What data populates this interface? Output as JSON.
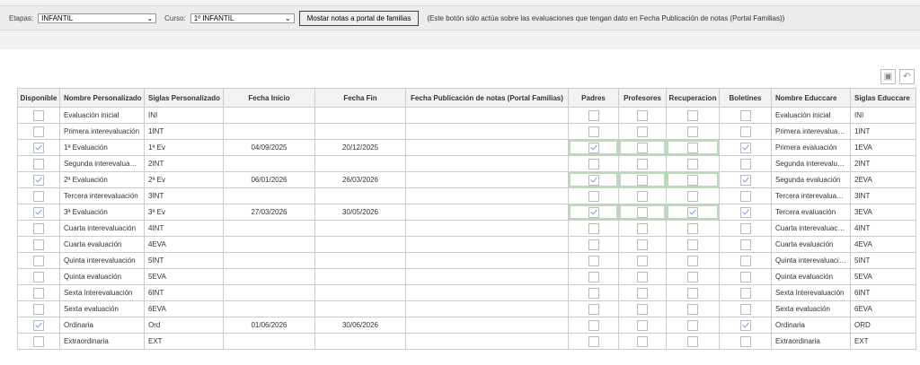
{
  "toolbar": {
    "etapas_label": "Etapas:",
    "etapas_value": "INFANTIL",
    "curso_label": "Curso:",
    "curso_value": "1º INFANTIL",
    "button": "Mostar notas a portal de familias",
    "note": "(Este botón sólo actúa sobre las evaluaciones que tengan dato en Fecha Publicación de notas (Portal Familias))"
  },
  "actions": {
    "save_icon": "save-icon",
    "undo_icon": "undo-icon"
  },
  "columns": [
    "Disponible",
    "Nombre Personalizado",
    "Siglas Personalizado",
    "Fecha Inicio",
    "Fecha Fin",
    "Fecha Publicación de notas (Portal Familias)",
    "Padres",
    "Profesores",
    "Recuperacion",
    "Boletines",
    "Nombre Educcare",
    "Siglas Educcare"
  ],
  "rows": [
    {
      "disp": false,
      "nombre": "Evaluación inicial",
      "siglas": "INI",
      "inicio": "",
      "fin": "",
      "pub": "",
      "padres": false,
      "prof": false,
      "rec": false,
      "bol": false,
      "hl": false,
      "ned": "Evaluación inicial",
      "sed": "INI"
    },
    {
      "disp": false,
      "nombre": "Primera interevaluación",
      "siglas": "1INT",
      "inicio": "",
      "fin": "",
      "pub": "",
      "padres": false,
      "prof": false,
      "rec": false,
      "bol": false,
      "hl": false,
      "ned": "Primera interevaluac...",
      "sed": "1INT"
    },
    {
      "disp": true,
      "nombre": "1ª Evaluación",
      "siglas": "1ª Ev",
      "inicio": "04/09/2025",
      "fin": "20/12/2025",
      "pub": "",
      "padres": true,
      "prof": false,
      "rec": false,
      "bol": true,
      "hl": true,
      "ned": "Primera evaluación",
      "sed": "1EVA"
    },
    {
      "disp": false,
      "nombre": "Segunda interevaluación",
      "siglas": "2INT",
      "inicio": "",
      "fin": "",
      "pub": "",
      "padres": false,
      "prof": false,
      "rec": false,
      "bol": false,
      "hl": false,
      "ned": "Segunda interevalua...",
      "sed": "2INT"
    },
    {
      "disp": true,
      "nombre": "2ª Evaluación",
      "siglas": "2ª Ev",
      "inicio": "06/01/2026",
      "fin": "26/03/2026",
      "pub": "",
      "padres": true,
      "prof": false,
      "rec": false,
      "bol": true,
      "hl": true,
      "ned": "Segunda evaluación",
      "sed": "2EVA"
    },
    {
      "disp": false,
      "nombre": "Tercera interevaluación",
      "siglas": "3INT",
      "inicio": "",
      "fin": "",
      "pub": "",
      "padres": false,
      "prof": false,
      "rec": false,
      "bol": false,
      "hl": false,
      "ned": "Tercera interevaluaci...",
      "sed": "3INT"
    },
    {
      "disp": true,
      "nombre": "3ª Evaluación",
      "siglas": "3ª Ev",
      "inicio": "27/03/2026",
      "fin": "30/05/2026",
      "pub": "",
      "padres": true,
      "prof": false,
      "rec": true,
      "bol": true,
      "hl": true,
      "ned": "Tercera evaluación",
      "sed": "3EVA"
    },
    {
      "disp": false,
      "nombre": "Cuarta interevaluación",
      "siglas": "4INT",
      "inicio": "",
      "fin": "",
      "pub": "",
      "padres": false,
      "prof": false,
      "rec": false,
      "bol": false,
      "hl": false,
      "ned": "Cuarta interevaluación",
      "sed": "4INT"
    },
    {
      "disp": false,
      "nombre": "Cuarta evaluación",
      "siglas": "4EVA",
      "inicio": "",
      "fin": "",
      "pub": "",
      "padres": false,
      "prof": false,
      "rec": false,
      "bol": false,
      "hl": false,
      "ned": "Cuarta evaluación",
      "sed": "4EVA"
    },
    {
      "disp": false,
      "nombre": "Quinta interevaluación",
      "siglas": "5INT",
      "inicio": "",
      "fin": "",
      "pub": "",
      "padres": false,
      "prof": false,
      "rec": false,
      "bol": false,
      "hl": false,
      "ned": "Quinta interevaluación",
      "sed": "5INT"
    },
    {
      "disp": false,
      "nombre": "Quinta evaluación",
      "siglas": "5EVA",
      "inicio": "",
      "fin": "",
      "pub": "",
      "padres": false,
      "prof": false,
      "rec": false,
      "bol": false,
      "hl": false,
      "ned": "Quinta evaluación",
      "sed": "5EVA"
    },
    {
      "disp": false,
      "nombre": "Sexta interevaluación",
      "siglas": "6INT",
      "inicio": "",
      "fin": "",
      "pub": "",
      "padres": false,
      "prof": false,
      "rec": false,
      "bol": false,
      "hl": false,
      "ned": "Sexta interevaluación",
      "sed": "6INT"
    },
    {
      "disp": false,
      "nombre": "Sexta evaluación",
      "siglas": "6EVA",
      "inicio": "",
      "fin": "",
      "pub": "",
      "padres": false,
      "prof": false,
      "rec": false,
      "bol": false,
      "hl": false,
      "ned": "Sexta evaluación",
      "sed": "6EVA"
    },
    {
      "disp": true,
      "nombre": "Ordinaria",
      "siglas": "Ord",
      "inicio": "01/06/2026",
      "fin": "30/06/2026",
      "pub": "",
      "padres": false,
      "prof": false,
      "rec": false,
      "bol": true,
      "hl": false,
      "ned": "Ordinaria",
      "sed": "ORD"
    },
    {
      "disp": false,
      "nombre": "Extraordinaria",
      "siglas": "EXT",
      "inicio": "",
      "fin": "",
      "pub": "",
      "padres": false,
      "prof": false,
      "rec": false,
      "bol": false,
      "hl": false,
      "ned": "Extraordinaria",
      "sed": "EXT"
    }
  ]
}
